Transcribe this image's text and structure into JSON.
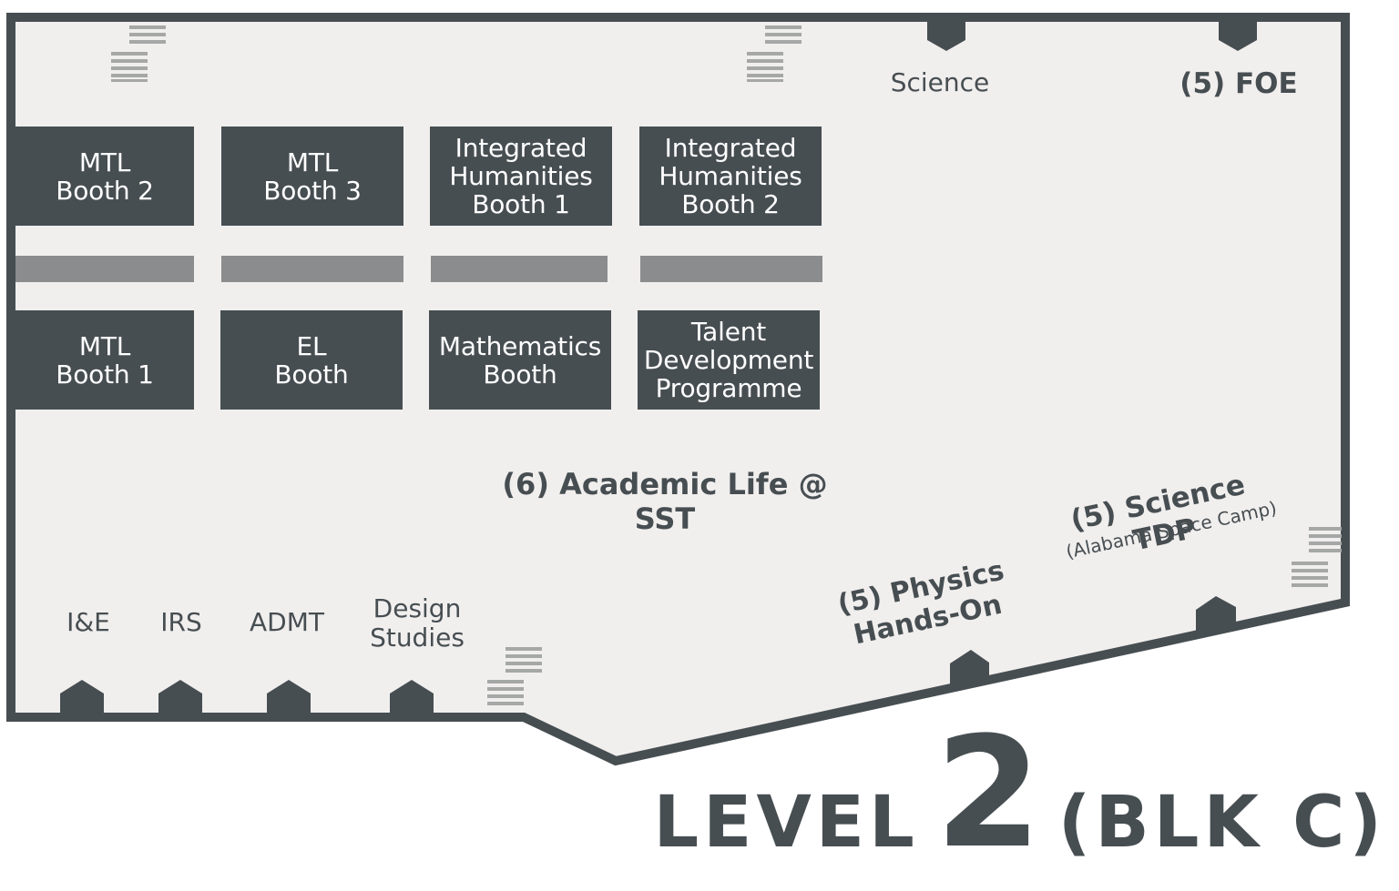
{
  "colors": {
    "wall": "#474e52",
    "floor": "#f1efee",
    "booth": "#474e52",
    "divider": "#8b8c8d",
    "stairs": "#a6a7a7"
  },
  "booths_top": [
    {
      "label": "MTL\nBooth 2"
    },
    {
      "label": "MTL\nBooth 3"
    },
    {
      "label": "Integrated\nHumanities\nBooth 1"
    },
    {
      "label": "Integrated\nHumanities\nBooth 2"
    }
  ],
  "booths_bottom": [
    {
      "label": "MTL\nBooth 1"
    },
    {
      "label": "EL\nBooth"
    },
    {
      "label": "Mathematics\nBooth"
    },
    {
      "label": "Talent\nDevelopment\nProgramme"
    }
  ],
  "rooms_top": {
    "science": "Science",
    "foe": "(5) FOE"
  },
  "rooms_bottom": {
    "ie": "I&E",
    "irs": "IRS",
    "admt": "ADMT",
    "design": "Design\nStudies"
  },
  "zones": {
    "academic": "(6) Academic Life @ SST",
    "physics": "(5) Physics\nHands-On",
    "science_tdp": "(5) Science TDP",
    "science_tdp_sub": "(Alabama Space Camp)"
  },
  "level": {
    "word": "LEVEL",
    "number": "2",
    "block": "(BLK C)"
  },
  "icons": [
    "door-icon",
    "stairs-icon"
  ]
}
